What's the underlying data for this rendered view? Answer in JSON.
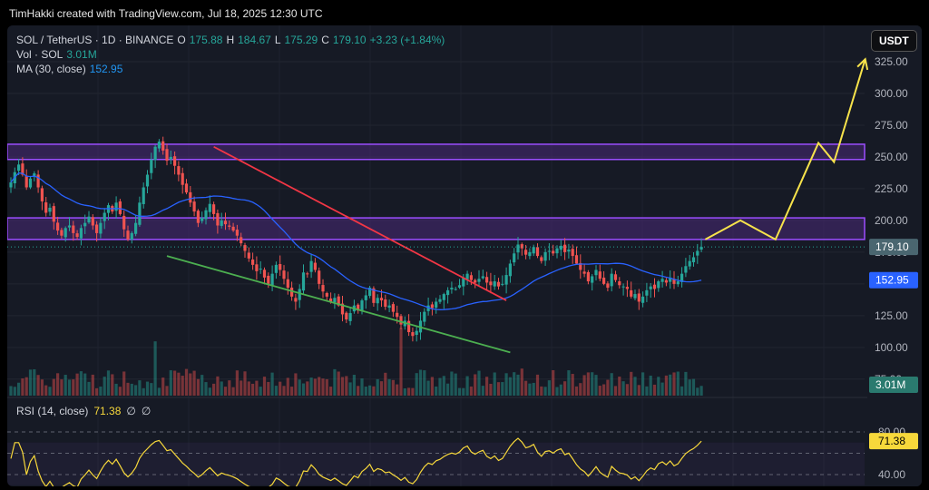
{
  "attribution": "TimHakki created with TradingView.com, Jul 18, 2025 12:30 UTC",
  "currency_button": "USDT",
  "legend": {
    "symbol": "SOL / TetherUS · 1D · BINANCE",
    "o_label": "O",
    "o_value": "175.88",
    "h_label": "H",
    "h_value": "184.67",
    "l_label": "L",
    "l_value": "175.29",
    "c_label": "C",
    "c_value": "179.10",
    "change": "+3.23 (+1.84%)",
    "vol_label": "Vol · SOL",
    "vol_value": "3.01M",
    "ma_label": "MA (30, close)",
    "ma_value": "152.95"
  },
  "rsi_legend": {
    "label": "RSI (14, close)",
    "value": "71.38",
    "icon1": "∅",
    "icon2": "∅"
  },
  "colors": {
    "up": "#26a69a",
    "down": "#ef5350",
    "ma": "#2962ff",
    "bg": "#161a25",
    "zone_fill": "#4a2a78",
    "zone_stroke": "#9c4dff",
    "resistance_line": "#f23645",
    "support_line": "#4caf50",
    "projection": "#f7e34b",
    "rsi": "#f7d83b",
    "price_tag": "#4a6670",
    "ma_tag": "#2962ff"
  },
  "chart_data": {
    "type": "candlestick",
    "title": "SOL / TetherUS · 1D · BINANCE",
    "y_axis": {
      "ticks": [
        75.0,
        100.0,
        125.0,
        150.0,
        175.0,
        200.0,
        225.0,
        250.0,
        275.0,
        300.0,
        325.0
      ],
      "labels": [
        "75.00",
        "100.00",
        "125.00",
        "150.00",
        "175.00",
        "200.00",
        "225.00",
        "250.00",
        "275.00",
        "300.00",
        "325.00"
      ],
      "ylim": [
        62,
        335
      ]
    },
    "last_price": 179.1,
    "last_price_label": "179.10",
    "ma_last": 152.95,
    "ma_last_label": "152.95",
    "volume_last_label": "3.01M",
    "close_series": [
      230,
      238,
      244,
      236,
      226,
      233,
      237,
      226,
      215,
      206,
      210,
      199,
      192,
      188,
      194,
      196,
      190,
      187,
      194,
      198,
      203,
      196,
      190,
      198,
      206,
      212,
      207,
      214,
      205,
      193,
      185,
      190,
      198,
      214,
      226,
      236,
      248,
      258,
      262,
      255,
      247,
      250,
      243,
      236,
      228,
      222,
      214,
      207,
      198,
      202,
      208,
      213,
      205,
      196,
      200,
      197,
      195,
      192,
      188,
      182,
      176,
      170,
      165,
      160,
      162,
      155,
      150,
      158,
      165,
      161,
      154,
      147,
      140,
      136,
      146,
      159,
      158,
      168,
      161,
      150,
      144,
      140,
      136,
      139,
      133,
      126,
      122,
      127,
      133,
      129,
      137,
      141,
      147,
      135,
      139,
      137,
      132,
      133,
      128,
      124,
      118,
      121,
      112,
      109,
      113,
      121,
      128,
      133,
      131,
      136,
      138,
      142,
      145,
      147,
      146,
      149,
      155,
      158,
      153,
      151,
      154,
      156,
      151,
      149,
      152,
      148,
      150,
      157,
      166,
      174,
      181,
      178,
      173,
      175,
      179,
      172,
      168,
      175,
      176,
      174,
      178,
      180,
      175,
      177,
      172,
      166,
      161,
      158,
      152,
      156,
      161,
      154,
      150,
      147,
      158,
      153,
      149,
      148,
      146,
      140,
      142,
      136,
      140,
      145,
      148,
      146,
      152,
      154,
      151,
      155,
      150,
      152,
      158,
      164,
      168,
      171,
      176,
      179.1
    ],
    "ma30_series_label": "MA (30, close)",
    "resistance_zones": [
      {
        "low": 248,
        "high": 260
      },
      {
        "low": 185,
        "high": 202
      }
    ],
    "trendlines": [
      {
        "name": "resistance",
        "from": [
          52,
          258
        ],
        "to": [
          127,
          137
        ]
      },
      {
        "name": "support",
        "from": [
          40,
          172
        ],
        "to": [
          128,
          96
        ]
      }
    ],
    "projection_path": [
      [
        178,
        185
      ],
      [
        187,
        200
      ],
      [
        196,
        185
      ],
      [
        207,
        261
      ],
      [
        211,
        246
      ],
      [
        219,
        327
      ]
    ],
    "rsi": {
      "levels": [
        40,
        60,
        80
      ],
      "labels": [
        "40.00",
        "80.00"
      ],
      "last": 71.38,
      "last_label": "71.38"
    }
  }
}
